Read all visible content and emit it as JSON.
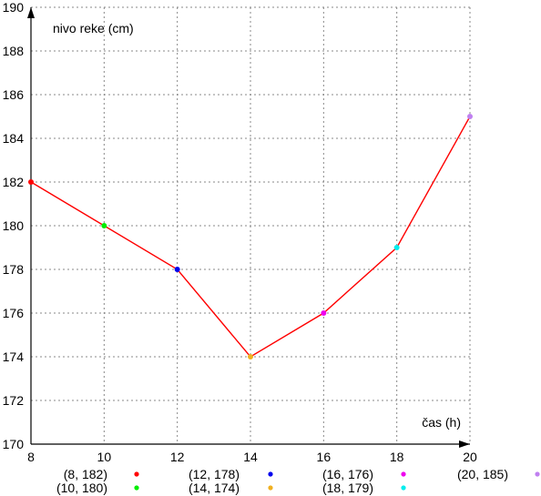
{
  "chart_data": {
    "type": "line",
    "xlabel": "čas (h)",
    "ylabel": "nivo reke (cm)",
    "xlim": [
      8,
      20
    ],
    "ylim": [
      170,
      190
    ],
    "x_ticks": [
      8,
      10,
      12,
      14,
      16,
      18,
      20
    ],
    "y_ticks": [
      170,
      172,
      174,
      176,
      178,
      180,
      182,
      184,
      186,
      188,
      190
    ],
    "grid": true,
    "line_color": "#ff0000",
    "points": [
      {
        "x": 8,
        "y": 182,
        "label": "(8, 182)",
        "color": "#ff0000"
      },
      {
        "x": 10,
        "y": 180,
        "label": "(10, 180)",
        "color": "#00ee00"
      },
      {
        "x": 12,
        "y": 178,
        "label": "(12, 178)",
        "color": "#0000ee"
      },
      {
        "x": 14,
        "y": 174,
        "label": "(14, 174)",
        "color": "#f0b020"
      },
      {
        "x": 16,
        "y": 176,
        "label": "(16, 176)",
        "color": "#ee00ee"
      },
      {
        "x": 18,
        "y": 179,
        "label": "(18, 179)",
        "color": "#00eeee"
      },
      {
        "x": 20,
        "y": 185,
        "label": "(20, 185)",
        "color": "#c080f0"
      }
    ]
  }
}
